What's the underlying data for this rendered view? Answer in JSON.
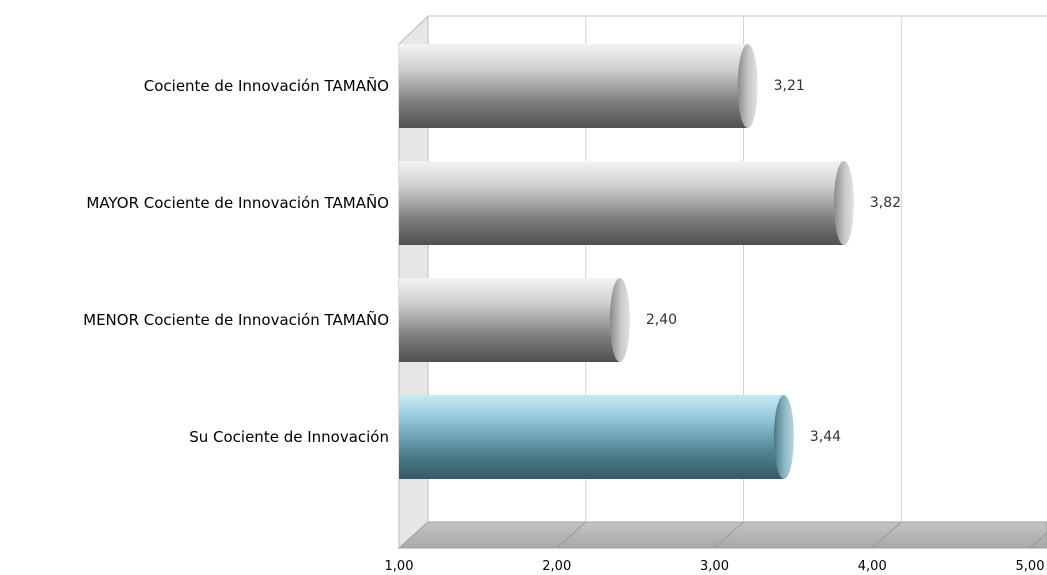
{
  "chart_data": {
    "type": "bar",
    "orientation": "horizontal",
    "categories": [
      "Cociente de Innovación TAMAÑO",
      "MAYOR Cociente de Innovación TAMAÑO",
      "MENOR Cociente de Innovación TAMAÑO",
      "Su Cociente de Innovación"
    ],
    "values": [
      3.21,
      3.82,
      2.4,
      3.44
    ],
    "value_labels": [
      "3,21",
      "3,82",
      "2,40",
      "3,44"
    ],
    "xlim": [
      1,
      5
    ],
    "x_ticks": [
      1,
      2,
      3,
      4,
      5
    ],
    "x_tick_labels": [
      "1,00",
      "2,00",
      "3,00",
      "4,00",
      "5,00"
    ],
    "grid": true,
    "style": "3d-cylinder",
    "colors": {
      "default": "#8c8c8c",
      "highlight": "#7fb3c4"
    },
    "highlight_category": "Su Cociente de Innovación"
  }
}
